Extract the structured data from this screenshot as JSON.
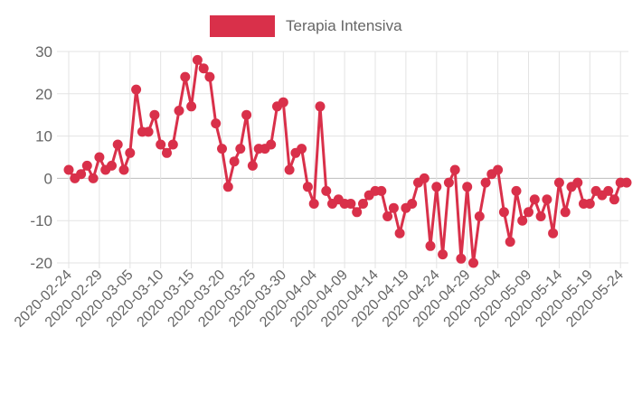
{
  "colors": {
    "series": "#d9304a",
    "grid": "#e3e3e3",
    "zero_line": "#bdbdbd",
    "tick_text": "#666666"
  },
  "chart_data": {
    "type": "line",
    "legend": {
      "position": "top-center"
    },
    "grid": true,
    "ylim": [
      -20,
      30
    ],
    "yticks": [
      -20,
      -10,
      0,
      10,
      20,
      30
    ],
    "x_start": "2020-02-24",
    "x_end": "2020-05-25",
    "xticks": [
      "2020-02-24",
      "2020-02-29",
      "2020-03-05",
      "2020-03-10",
      "2020-03-15",
      "2020-03-20",
      "2020-03-25",
      "2020-03-30",
      "2020-04-04",
      "2020-04-09",
      "2020-04-14",
      "2020-04-19",
      "2020-04-24",
      "2020-04-29",
      "2020-05-04",
      "2020-05-09",
      "2020-05-14",
      "2020-05-19",
      "2020-05-24"
    ],
    "series": [
      {
        "name": "Terapia Intensiva",
        "values": [
          2,
          0,
          1,
          3,
          0,
          5,
          2,
          3,
          8,
          2,
          6,
          21,
          11,
          11,
          15,
          8,
          6,
          8,
          16,
          24,
          17,
          28,
          26,
          24,
          13,
          7,
          -2,
          4,
          7,
          15,
          3,
          7,
          7,
          8,
          17,
          18,
          2,
          6,
          7,
          -2,
          -6,
          17,
          -3,
          -6,
          -5,
          -6,
          -6,
          -8,
          -6,
          -4,
          -3,
          -3,
          -9,
          -7,
          -13,
          -7,
          -6,
          -1,
          0,
          -16,
          -2,
          -18,
          -1,
          2,
          -19,
          -2,
          -20,
          -9,
          -1,
          1,
          2,
          -8,
          -15,
          -3,
          -10,
          -8,
          -5,
          -9,
          -5,
          -13,
          -1,
          -8,
          -2,
          -1,
          -6,
          -6,
          -3,
          -4,
          -3,
          -5,
          -1,
          -1
        ]
      }
    ]
  }
}
